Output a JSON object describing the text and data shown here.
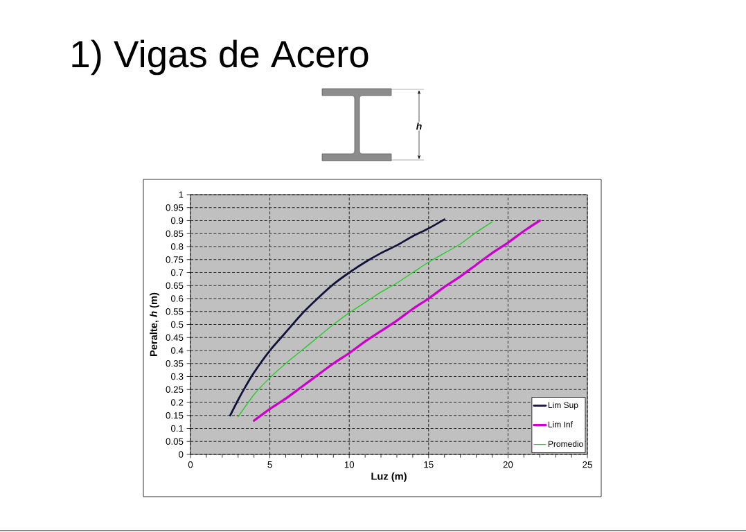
{
  "chart_data": {
    "type": "line",
    "title": "1) Vigas de Acero",
    "xlabel": "Luz (m)",
    "ylabel": "Peralte, *h* (m)",
    "annotations": [
      "h"
    ],
    "xlim": [
      0,
      25
    ],
    "ylim": [
      0,
      1
    ],
    "xticks": [
      0,
      {
        "value": 1,
        "label": null
      },
      {
        "value": 2,
        "label": null
      },
      {
        "value": 3,
        "label": null
      },
      {
        "value": 4,
        "label": null
      },
      5,
      {
        "value": 6,
        "label": null
      },
      {
        "value": 7,
        "label": null
      },
      {
        "value": 8,
        "label": null
      },
      {
        "value": 9,
        "label": null
      },
      10,
      {
        "value": 11,
        "label": null
      },
      {
        "value": 12,
        "label": null
      },
      {
        "value": 13,
        "label": null
      },
      {
        "value": 14,
        "label": null
      },
      15,
      {
        "value": 16,
        "label": null
      },
      {
        "value": 17,
        "label": null
      },
      {
        "value": 18,
        "label": null
      },
      {
        "value": 19,
        "label": null
      },
      20,
      {
        "value": 21,
        "label": null
      },
      {
        "value": 22,
        "label": null
      },
      {
        "value": 23,
        "label": null
      },
      {
        "value": 24,
        "label": null
      },
      25
    ],
    "yticks": [
      0,
      0.05,
      0.1,
      0.15,
      0.2,
      0.25,
      0.3,
      0.35,
      0.4,
      0.45,
      0.5,
      0.55,
      0.6,
      0.65,
      0.7,
      0.75,
      0.8,
      0.85,
      0.9,
      0.95,
      1
    ],
    "grid": true,
    "legend": "bottom right",
    "marker": "none",
    "line_style": "solid",
    "series": [
      {
        "name": "Lim Sup",
        "color": "#12123a",
        "x": [
          2.5,
          3,
          3.5,
          4,
          5,
          6,
          7,
          8,
          9,
          10,
          11,
          12,
          13,
          14,
          15,
          16
        ],
        "values": [
          0.15,
          0.21,
          0.265,
          0.315,
          0.4,
          0.47,
          0.54,
          0.6,
          0.655,
          0.7,
          0.74,
          0.775,
          0.805,
          0.84,
          0.87,
          0.905
        ]
      },
      {
        "name": "Lim Inf",
        "color": "#cc00cc",
        "x": [
          4,
          5,
          6,
          7,
          8,
          9,
          10,
          11,
          12,
          13,
          14,
          15,
          16,
          17,
          18,
          19,
          20,
          21,
          22
        ],
        "values": [
          0.13,
          0.175,
          0.215,
          0.26,
          0.305,
          0.35,
          0.39,
          0.435,
          0.475,
          0.515,
          0.56,
          0.6,
          0.645,
          0.685,
          0.73,
          0.775,
          0.815,
          0.86,
          0.9
        ]
      },
      {
        "name": "Promedio",
        "color": "#22cc22",
        "x": [
          3,
          4,
          5,
          6,
          7,
          8,
          9,
          10,
          11,
          12,
          13,
          14,
          15,
          16,
          17,
          18,
          19
        ],
        "values": [
          0.145,
          0.23,
          0.295,
          0.35,
          0.4,
          0.45,
          0.5,
          0.545,
          0.585,
          0.625,
          0.66,
          0.7,
          0.74,
          0.775,
          0.81,
          0.855,
          0.895
        ]
      }
    ]
  }
}
